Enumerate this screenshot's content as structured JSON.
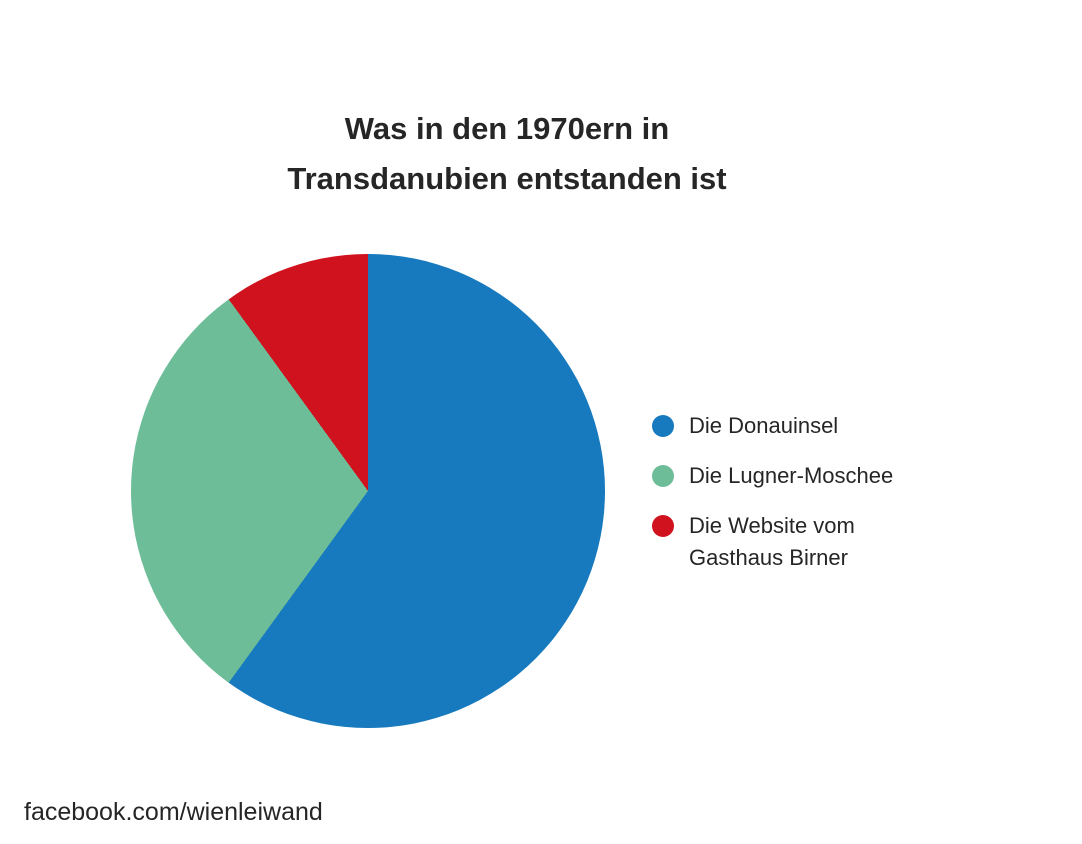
{
  "title": {
    "line1": "Was in den 1970ern in",
    "line2": "Transdanubien entstanden ist"
  },
  "footer": {
    "text": "facebook.com/wienleiwand"
  },
  "colors": {
    "background": "#ffffff",
    "text": "#262626",
    "slice_blue": "#1779BE",
    "slice_green": "#6CBD98",
    "slice_red": "#D0121F"
  },
  "chart_data": {
    "type": "pie",
    "title": "Was in den 1970ern in Transdanubien entstanden ist",
    "legend_position": "right",
    "start_angle_deg": 0,
    "direction": "clockwise",
    "values_unit": "percent",
    "slices": [
      {
        "label": "Die Donauinsel",
        "value": 60,
        "angle_deg": 216,
        "color": "#1779BE"
      },
      {
        "label": "Die Lugner-Moschee",
        "value": 30,
        "angle_deg": 108,
        "color": "#6CBD98"
      },
      {
        "label": "Die Website vom Gasthaus Birner",
        "value": 10,
        "angle_deg": 36,
        "color": "#D0121F"
      }
    ]
  }
}
